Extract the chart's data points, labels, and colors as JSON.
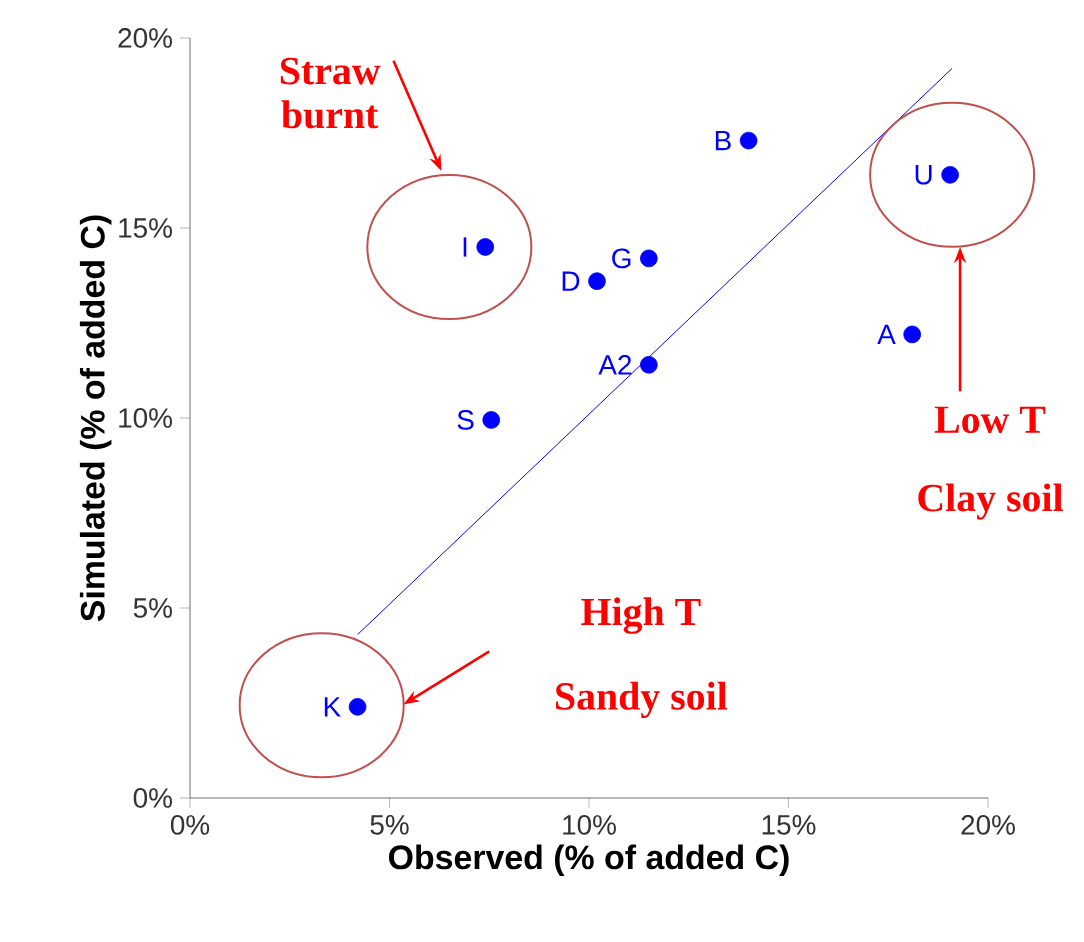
{
  "chart_data": {
    "type": "scatter",
    "xlabel": "Observed (% of added C)",
    "ylabel": "Simulated (% of added C)",
    "xlim": [
      0,
      20
    ],
    "ylim": [
      0,
      20
    ],
    "xticks": [
      {
        "value": 0,
        "label": "0%"
      },
      {
        "value": 5,
        "label": "5%"
      },
      {
        "value": 10,
        "label": "10%"
      },
      {
        "value": 15,
        "label": "15%"
      },
      {
        "value": 20,
        "label": "20%"
      }
    ],
    "yticks": [
      {
        "value": 0,
        "label": "0%"
      },
      {
        "value": 5,
        "label": "5%"
      },
      {
        "value": 10,
        "label": "10%"
      },
      {
        "value": 15,
        "label": "15%"
      },
      {
        "value": 20,
        "label": "20%"
      }
    ],
    "marker": "circle",
    "series": [
      {
        "type": "line",
        "marker": "none",
        "color": "#0000ff",
        "x": [
          4.2,
          19.1
        ],
        "values": [
          4.3,
          19.2
        ]
      },
      {
        "name": "B",
        "color": "#0000ff",
        "x": [
          14.0
        ],
        "values": [
          17.3
        ]
      },
      {
        "name": "U",
        "color": "#0000ff",
        "x": [
          19.05
        ],
        "values": [
          16.4
        ]
      },
      {
        "name": "I",
        "color": "#0000ff",
        "x": [
          7.4
        ],
        "values": [
          14.5
        ]
      },
      {
        "name": "G",
        "color": "#0000ff",
        "x": [
          11.5
        ],
        "values": [
          14.2
        ]
      },
      {
        "name": "D",
        "color": "#0000ff",
        "x": [
          10.2
        ],
        "values": [
          13.6
        ]
      },
      {
        "name": "A",
        "color": "#0000ff",
        "x": [
          18.1
        ],
        "values": [
          12.2
        ]
      },
      {
        "name": "A2",
        "color": "#0000ff",
        "x": [
          11.5
        ],
        "values": [
          11.4
        ]
      },
      {
        "name": "S",
        "color": "#0000ff",
        "x": [
          7.55
        ],
        "values": [
          9.95
        ]
      },
      {
        "name": "K",
        "color": "#0000ff",
        "x": [
          4.2
        ],
        "values": [
          2.4
        ]
      }
    ],
    "annotations": [
      "Straw burnt",
      "Low T",
      "Clay soil",
      "High T",
      "Sandy soil"
    ]
  }
}
